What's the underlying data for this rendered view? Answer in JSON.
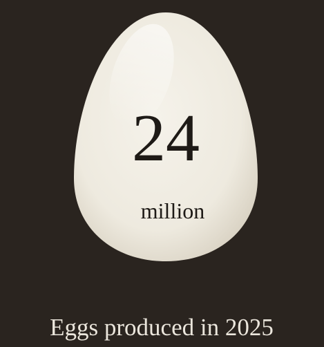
{
  "infographic": {
    "number": 24,
    "unit": "million",
    "caption": "Eggs produced in 2025"
  }
}
